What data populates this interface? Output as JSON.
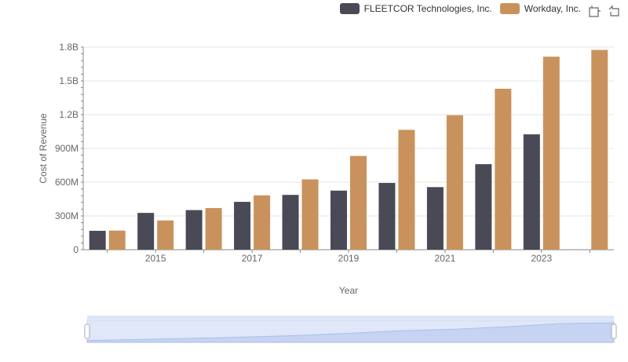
{
  "chart_data": {
    "type": "bar",
    "x": [
      "2014",
      "2015",
      "2016",
      "2017",
      "2018",
      "2019",
      "2020",
      "2021",
      "2022",
      "2023",
      "2024"
    ],
    "x_tick_labels": [
      "2015",
      "2017",
      "2019",
      "2021",
      "2023"
    ],
    "series": [
      {
        "name": "FLEETCOR Technologies, Inc.",
        "color": "#4a4a56",
        "values": [
          168000000,
          327000000,
          352000000,
          425000000,
          487000000,
          525000000,
          593000000,
          556000000,
          760000000,
          1025000000,
          null
        ]
      },
      {
        "name": "Workday, Inc.",
        "color": "#c9925c",
        "values": [
          170000000,
          260000000,
          370000000,
          483000000,
          625000000,
          833000000,
          1065000000,
          1195000000,
          1430000000,
          1715000000,
          1775000000
        ]
      }
    ],
    "xlabel": "Year",
    "ylabel": "Cost of Revenue",
    "ylim": [
      0,
      1800000000
    ],
    "y_ticks": [
      0,
      300000000,
      600000000,
      900000000,
      1200000000,
      1500000000,
      1800000000
    ],
    "y_tick_labels": [
      "0",
      "300M",
      "600M",
      "900M",
      "1.2B",
      "1.5B",
      "1.8B"
    ],
    "grid": true,
    "legend_position": "top-right"
  },
  "toolbar": {
    "restore_icon": "restore-icon",
    "zoom_icon": "zoom-icon"
  },
  "datazoom": {
    "range": [
      0,
      100
    ]
  }
}
